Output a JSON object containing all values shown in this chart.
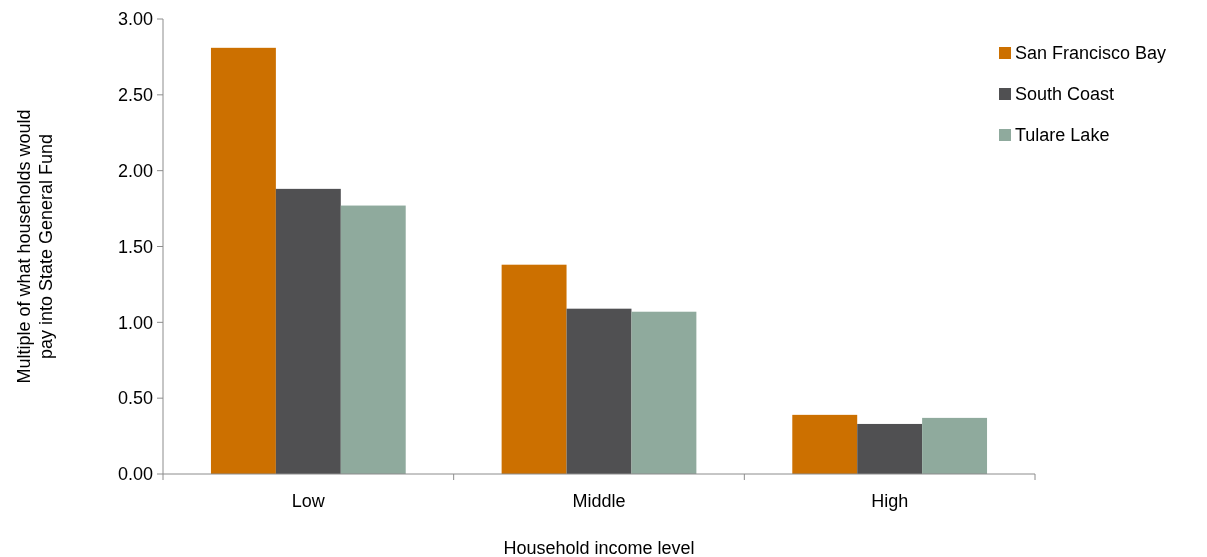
{
  "chart_data": {
    "type": "bar",
    "xlabel": "Household income level",
    "ylabel": "Multiple of what households would pay into State General Fund",
    "categories": [
      "Low",
      "Middle",
      "High"
    ],
    "series": [
      {
        "name": "San Francisco Bay",
        "color": "#cc7000",
        "values": [
          2.81,
          1.38,
          0.39
        ]
      },
      {
        "name": "South Coast",
        "color": "#505052",
        "values": [
          1.88,
          1.09,
          0.33
        ]
      },
      {
        "name": "Tulare Lake",
        "color": "#8faa9d",
        "values": [
          1.77,
          1.07,
          0.37
        ]
      }
    ],
    "ylim": [
      0,
      3
    ],
    "yticks": [
      {
        "value": 0,
        "label": "0.00"
      },
      {
        "value": 0.5,
        "label": "0.50"
      },
      {
        "value": 1,
        "label": "1.00"
      },
      {
        "value": 1.5,
        "label": "1.50"
      },
      {
        "value": 2,
        "label": "2.00"
      },
      {
        "value": 2.5,
        "label": "2.50"
      },
      {
        "value": 3,
        "label": "3.00"
      }
    ],
    "grid": false,
    "legend": "right"
  }
}
